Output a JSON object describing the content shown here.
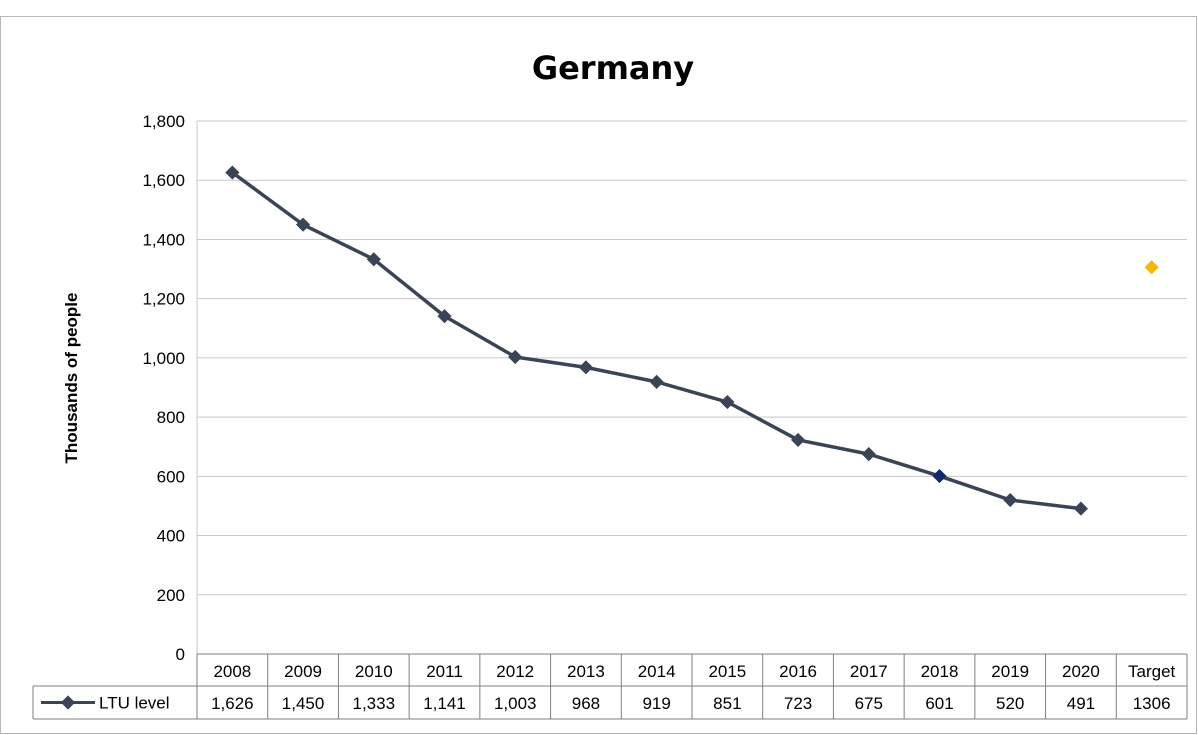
{
  "chart_data": {
    "type": "line",
    "title": "Germany",
    "ylabel": "Thousands of people",
    "xlabel": "",
    "ylim": [
      0,
      1800
    ],
    "yticks": [
      0,
      200,
      400,
      600,
      800,
      1000,
      1200,
      1400,
      1600,
      1800
    ],
    "ytick_labels": [
      "0",
      "200",
      "400",
      "600",
      "800",
      "1,000",
      "1,200",
      "1,400",
      "1,600",
      "1,800"
    ],
    "categories": [
      "2008",
      "2009",
      "2010",
      "2011",
      "2012",
      "2013",
      "2014",
      "2015",
      "2016",
      "2017",
      "2018",
      "2019",
      "2020",
      "Target"
    ],
    "grid": true,
    "legend": "data-table",
    "series": [
      {
        "name": "LTU level",
        "values": [
          1626,
          1450,
          1333,
          1141,
          1003,
          968,
          919,
          851,
          723,
          675,
          601,
          520,
          491,
          1306
        ],
        "display_values": [
          "1,626",
          "1,450",
          "1,333",
          "1,141",
          "1,003",
          "968",
          "919",
          "851",
          "723",
          "675",
          "601",
          "520",
          "491",
          "1306"
        ],
        "line_points": 13,
        "color": "#3b4455",
        "highlight_index": 10,
        "highlight_color": "#0d2a6b",
        "target_color": "#f5b800"
      }
    ]
  }
}
